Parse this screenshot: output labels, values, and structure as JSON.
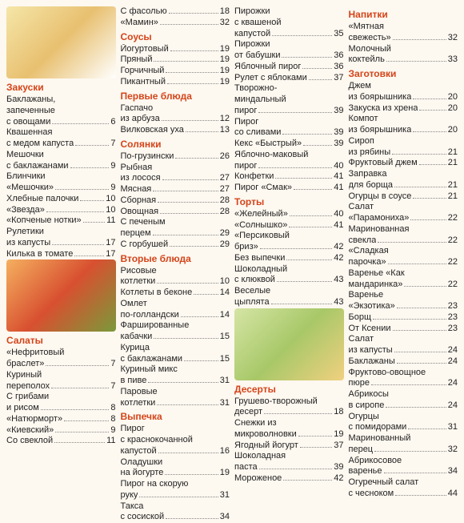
{
  "columns": [
    {
      "blocks": [
        {
          "type": "image",
          "cls": "img1"
        },
        {
          "type": "section",
          "title": "Закуски"
        },
        {
          "type": "entry",
          "lines": [
            "Баклажаны,",
            "запеченные"
          ],
          "last": "с овощами",
          "page": 6
        },
        {
          "type": "entry",
          "lines": [
            "Квашенная"
          ],
          "last": "с медом капуста",
          "page": 7
        },
        {
          "type": "entry",
          "lines": [
            "Мешочки"
          ],
          "last": "с баклажанами",
          "page": 9
        },
        {
          "type": "entry",
          "lines": [
            "Блинчики"
          ],
          "last": "«Мешочки»",
          "page": 9
        },
        {
          "type": "entry",
          "lines": [],
          "last": "Хлебные палочки",
          "page": 10
        },
        {
          "type": "entry",
          "lines": [],
          "last": "«Звезда»",
          "page": 10
        },
        {
          "type": "entry",
          "lines": [],
          "last": "«Копченые нотки»",
          "page": 11
        },
        {
          "type": "entry",
          "lines": [
            "Рулетики"
          ],
          "last": "из капусты",
          "page": 17
        },
        {
          "type": "entry",
          "lines": [],
          "last": "Килька в томате",
          "page": 17
        },
        {
          "type": "image",
          "cls": "img2"
        },
        {
          "type": "section",
          "title": "Салаты"
        },
        {
          "type": "entry",
          "lines": [
            "«Нефритовый"
          ],
          "last": "браслет»",
          "page": 7
        },
        {
          "type": "entry",
          "lines": [
            "Куриный"
          ],
          "last": "переполох",
          "page": 7
        },
        {
          "type": "entry",
          "lines": [
            "С грибами"
          ],
          "last": "и рисом",
          "page": 8
        },
        {
          "type": "entry",
          "lines": [],
          "last": "«Натюрморт»",
          "page": 8
        },
        {
          "type": "entry",
          "lines": [],
          "last": "«Киевский»",
          "page": 9
        },
        {
          "type": "entry",
          "lines": [],
          "last": "Со свеклой",
          "page": 11
        }
      ]
    },
    {
      "blocks": [
        {
          "type": "entry",
          "lines": [],
          "last": "С фасолью",
          "page": 18
        },
        {
          "type": "entry",
          "lines": [],
          "last": "«Мамин»",
          "page": 32
        },
        {
          "type": "section",
          "title": "Соусы"
        },
        {
          "type": "entry",
          "lines": [],
          "last": "Йогуртовый",
          "page": 19
        },
        {
          "type": "entry",
          "lines": [],
          "last": "Пряный",
          "page": 19
        },
        {
          "type": "entry",
          "lines": [],
          "last": "Горчичный",
          "page": 19
        },
        {
          "type": "entry",
          "lines": [],
          "last": "Пикантный",
          "page": 19
        },
        {
          "type": "section",
          "title": "Первые блюда"
        },
        {
          "type": "entry",
          "lines": [
            "Гаспачо"
          ],
          "last": "из арбуза",
          "page": 12
        },
        {
          "type": "entry",
          "lines": [],
          "last": "Вилковская уха",
          "page": 13
        },
        {
          "type": "section",
          "title": "Солянки"
        },
        {
          "type": "entry",
          "lines": [],
          "last": "По-грузински",
          "page": 26
        },
        {
          "type": "entry",
          "lines": [
            "Рыбная"
          ],
          "last": "из лосося",
          "page": 27
        },
        {
          "type": "entry",
          "lines": [],
          "last": "Мясная",
          "page": 27
        },
        {
          "type": "entry",
          "lines": [],
          "last": "Сборная",
          "page": 28
        },
        {
          "type": "entry",
          "lines": [],
          "last": "Овощная",
          "page": 28
        },
        {
          "type": "entry",
          "lines": [
            "С печеным"
          ],
          "last": "перцем",
          "page": 29
        },
        {
          "type": "entry",
          "lines": [],
          "last": "С горбушей",
          "page": 29
        },
        {
          "type": "section",
          "title": "Вторые блюда"
        },
        {
          "type": "entry",
          "lines": [
            "Рисовые"
          ],
          "last": "котлетки",
          "page": 10
        },
        {
          "type": "entry",
          "lines": [],
          "last": "Котлеты в беконе",
          "page": 14
        },
        {
          "type": "entry",
          "lines": [
            "Омлет"
          ],
          "last": "по-голландски",
          "page": 14
        },
        {
          "type": "entry",
          "lines": [
            "Фаршированные"
          ],
          "last": "кабачки",
          "page": 15
        },
        {
          "type": "entry",
          "lines": [
            "Курица"
          ],
          "last": "с баклажанами",
          "page": 15
        },
        {
          "type": "entry",
          "lines": [
            "Куриный микс"
          ],
          "last": "в пиве",
          "page": 31
        },
        {
          "type": "entry",
          "lines": [
            "Паровые"
          ],
          "last": "котлетки",
          "page": 31
        },
        {
          "type": "section",
          "title": "Выпечка"
        },
        {
          "type": "entry",
          "lines": [
            "Пирог",
            "с краснокочанной"
          ],
          "last": "капустой",
          "page": 16
        },
        {
          "type": "entry",
          "lines": [
            "Оладушки"
          ],
          "last": "на йогурте",
          "page": 19
        },
        {
          "type": "entry",
          "lines": [
            "Пирог на скорую"
          ],
          "last": "руку",
          "page": 31
        },
        {
          "type": "entry",
          "lines": [
            "Такса"
          ],
          "last": "с сосиской",
          "page": 34
        }
      ]
    },
    {
      "blocks": [
        {
          "type": "entry",
          "lines": [
            "Пирожки",
            "с квашеной"
          ],
          "last": "капустой",
          "page": 35
        },
        {
          "type": "entry",
          "lines": [
            "Пирожки"
          ],
          "last": "от бабушки",
          "page": 36
        },
        {
          "type": "entry",
          "lines": [],
          "last": "Яблочный пирог",
          "page": 36
        },
        {
          "type": "entry",
          "lines": [],
          "last": "Рулет с яблоками",
          "page": 37
        },
        {
          "type": "entry",
          "lines": [
            "Творожно-",
            "миндальный"
          ],
          "last": "пирог",
          "page": 39
        },
        {
          "type": "entry",
          "lines": [
            "Пирог"
          ],
          "last": "со сливами",
          "page": 39
        },
        {
          "type": "entry",
          "lines": [],
          "last": "Кекс «Быстрый»",
          "page": 39
        },
        {
          "type": "entry",
          "lines": [
            "Яблочно-маковый"
          ],
          "last": "пирог",
          "page": 40
        },
        {
          "type": "entry",
          "lines": [],
          "last": "Конфетки",
          "page": 41
        },
        {
          "type": "entry",
          "lines": [],
          "last": "Пирог «Смак»",
          "page": 41
        },
        {
          "type": "section",
          "title": "Торты"
        },
        {
          "type": "entry",
          "lines": [],
          "last": "«Желейный»",
          "page": 40
        },
        {
          "type": "entry",
          "lines": [],
          "last": "«Солнышко»",
          "page": 41
        },
        {
          "type": "entry",
          "lines": [
            "«Персиковый"
          ],
          "last": "бриз»",
          "page": 42
        },
        {
          "type": "entry",
          "lines": [],
          "last": "Без выпечки",
          "page": 42
        },
        {
          "type": "entry",
          "lines": [
            "Шоколадный"
          ],
          "last": "с клюквой",
          "page": 43
        },
        {
          "type": "entry",
          "lines": [
            "Веселые"
          ],
          "last": "цыплята",
          "page": 43
        },
        {
          "type": "image",
          "cls": "img3"
        },
        {
          "type": "section",
          "title": "Десерты"
        },
        {
          "type": "entry",
          "lines": [
            "Грушево-творожный"
          ],
          "last": "десерт",
          "page": 18
        },
        {
          "type": "entry",
          "lines": [
            "Снежки из"
          ],
          "last": "микроволновки",
          "page": 19
        },
        {
          "type": "entry",
          "lines": [],
          "last": "Ягодный йогурт",
          "page": 37
        },
        {
          "type": "entry",
          "lines": [
            "Шоколадная"
          ],
          "last": "паста",
          "page": 39
        },
        {
          "type": "entry",
          "lines": [],
          "last": "Мороженое",
          "page": 42
        }
      ]
    },
    {
      "blocks": [
        {
          "type": "section",
          "title": "Напитки"
        },
        {
          "type": "entry",
          "lines": [
            "«Мятная"
          ],
          "last": "свежесть»",
          "page": 32
        },
        {
          "type": "entry",
          "lines": [
            "Молочный"
          ],
          "last": "коктейль",
          "page": 33
        },
        {
          "type": "section",
          "title": "Заготовки"
        },
        {
          "type": "entry",
          "lines": [
            "Джем"
          ],
          "last": "из боярышника",
          "page": 20
        },
        {
          "type": "entry",
          "lines": [],
          "last": "Закуска из хрена",
          "page": 20
        },
        {
          "type": "entry",
          "lines": [
            "Компот"
          ],
          "last": "из боярышника",
          "page": 20
        },
        {
          "type": "entry",
          "lines": [
            "Сироп"
          ],
          "last": "из рябины",
          "page": 21
        },
        {
          "type": "entry",
          "lines": [],
          "last": "Фруктовый джем",
          "page": 21
        },
        {
          "type": "entry",
          "lines": [
            "Заправка"
          ],
          "last": "для борща",
          "page": 21
        },
        {
          "type": "entry",
          "lines": [],
          "last": "Огурцы в соусе",
          "page": 21
        },
        {
          "type": "entry",
          "lines": [
            "Салат"
          ],
          "last": "«Парамониха»",
          "page": 22
        },
        {
          "type": "entry",
          "lines": [
            "Маринованная"
          ],
          "last": "свекла",
          "page": 22
        },
        {
          "type": "entry",
          "lines": [
            "«Сладкая"
          ],
          "last": "парочка»",
          "page": 22
        },
        {
          "type": "entry",
          "lines": [
            "Варенье «Как"
          ],
          "last": "мандаринка»",
          "page": 22
        },
        {
          "type": "entry",
          "lines": [
            "Варенье"
          ],
          "last": "«Экзотика»",
          "page": 23
        },
        {
          "type": "entry",
          "lines": [],
          "last": "Борщ",
          "page": 23
        },
        {
          "type": "entry",
          "lines": [],
          "last": "От Ксении",
          "page": 23
        },
        {
          "type": "entry",
          "lines": [
            "Салат"
          ],
          "last": "из капусты",
          "page": 24
        },
        {
          "type": "entry",
          "lines": [],
          "last": "Баклажаны",
          "page": 24
        },
        {
          "type": "entry",
          "lines": [
            "Фруктово-овощное"
          ],
          "last": "пюре",
          "page": 24
        },
        {
          "type": "entry",
          "lines": [
            "Абрикосы"
          ],
          "last": "в сиропе",
          "page": 24
        },
        {
          "type": "entry",
          "lines": [
            "Огурцы"
          ],
          "last": "с помидорами",
          "page": 31
        },
        {
          "type": "entry",
          "lines": [
            "Маринованный"
          ],
          "last": "перец",
          "page": 32
        },
        {
          "type": "entry",
          "lines": [
            "Абрикосовое"
          ],
          "last": "варенье",
          "page": 34
        },
        {
          "type": "entry",
          "lines": [
            "Огуречный салат"
          ],
          "last": "с чесноком",
          "page": 44
        }
      ]
    }
  ]
}
